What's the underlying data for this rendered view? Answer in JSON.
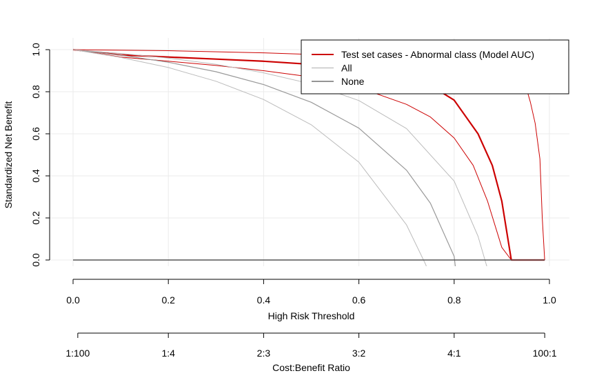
{
  "chart_data": {
    "type": "line",
    "xlabel": "High Risk Threshold",
    "ylabel": "Standardized Net Benefit",
    "xlim": [
      0,
      1
    ],
    "ylim": [
      0,
      1
    ],
    "x_ticks": [
      "0.0",
      "0.2",
      "0.4",
      "0.6",
      "0.8",
      "1.0"
    ],
    "y_ticks": [
      "0.0",
      "0.2",
      "0.4",
      "0.6",
      "0.8",
      "1.0"
    ],
    "grid": true,
    "legend_position": "top-right",
    "secondary_axis": {
      "label": "Cost:Benefit Ratio",
      "ticks": [
        {
          "x": 0.0099,
          "label": "1:100"
        },
        {
          "x": 0.2,
          "label": "1:4"
        },
        {
          "x": 0.4,
          "label": "2:3"
        },
        {
          "x": 0.6,
          "label": "3:2"
        },
        {
          "x": 0.8,
          "label": "4:1"
        },
        {
          "x": 0.9901,
          "label": "100:1"
        }
      ]
    },
    "legend": [
      {
        "label": "Test set cases - Abnormal class (Model AUC)",
        "color": "#cc0000"
      },
      {
        "label": "All",
        "color": "#bbbbbb"
      },
      {
        "label": "None",
        "color": "#555555"
      }
    ],
    "series": [
      {
        "role": "model",
        "color": "#cc0000",
        "width": 2.2,
        "x": [
          0,
          0.1,
          0.2,
          0.3,
          0.4,
          0.5,
          0.6,
          0.7,
          0.75,
          0.8,
          0.85,
          0.88,
          0.9,
          0.92,
          0.95,
          0.99
        ],
        "y": [
          1.0,
          0.975,
          0.965,
          0.955,
          0.945,
          0.93,
          0.91,
          0.87,
          0.83,
          0.76,
          0.6,
          0.45,
          0.28,
          0.0,
          0.0,
          0.0
        ]
      },
      {
        "role": "model-ci-upper",
        "color": "#cc0000",
        "width": 1,
        "x": [
          0,
          0.2,
          0.4,
          0.6,
          0.8,
          0.9,
          0.95,
          0.96,
          0.97,
          0.98,
          0.985,
          0.99
        ],
        "y": [
          1.0,
          0.995,
          0.985,
          0.97,
          0.94,
          0.9,
          0.83,
          0.75,
          0.65,
          0.48,
          0.2,
          0.0
        ]
      },
      {
        "role": "model-ci-lower",
        "color": "#cc0000",
        "width": 1,
        "x": [
          0,
          0.1,
          0.2,
          0.3,
          0.4,
          0.5,
          0.6,
          0.7,
          0.75,
          0.8,
          0.84,
          0.87,
          0.9,
          0.92,
          0.95
        ],
        "y": [
          1.0,
          0.965,
          0.945,
          0.925,
          0.9,
          0.87,
          0.82,
          0.74,
          0.68,
          0.58,
          0.45,
          0.28,
          0.06,
          0.0,
          0.0
        ]
      },
      {
        "role": "all",
        "color": "#999999",
        "width": 1.2,
        "x": [
          0,
          0.1,
          0.2,
          0.3,
          0.4,
          0.5,
          0.6,
          0.7,
          0.75,
          0.8,
          0.805
        ],
        "y": [
          1.0,
          0.974,
          0.94,
          0.895,
          0.834,
          0.75,
          0.627,
          0.427,
          0.27,
          0.017,
          -0.08
        ]
      },
      {
        "role": "all-ci-upper",
        "color": "#bbbbbb",
        "width": 1,
        "x": [
          0,
          0.1,
          0.2,
          0.3,
          0.4,
          0.5,
          0.6,
          0.7,
          0.8,
          0.85,
          0.875
        ],
        "y": [
          1.0,
          0.982,
          0.96,
          0.93,
          0.89,
          0.837,
          0.758,
          0.625,
          0.375,
          0.113,
          -0.08
        ]
      },
      {
        "role": "all-ci-lower",
        "color": "#bbbbbb",
        "width": 1,
        "x": [
          0,
          0.1,
          0.2,
          0.3,
          0.4,
          0.5,
          0.6,
          0.7,
          0.74,
          0.75
        ],
        "y": [
          1.0,
          0.963,
          0.915,
          0.85,
          0.763,
          0.643,
          0.465,
          0.167,
          -0.02,
          -0.08
        ]
      },
      {
        "role": "none",
        "color": "#555555",
        "width": 1.4,
        "x": [
          0,
          0.99
        ],
        "y": [
          0,
          0
        ]
      }
    ]
  }
}
